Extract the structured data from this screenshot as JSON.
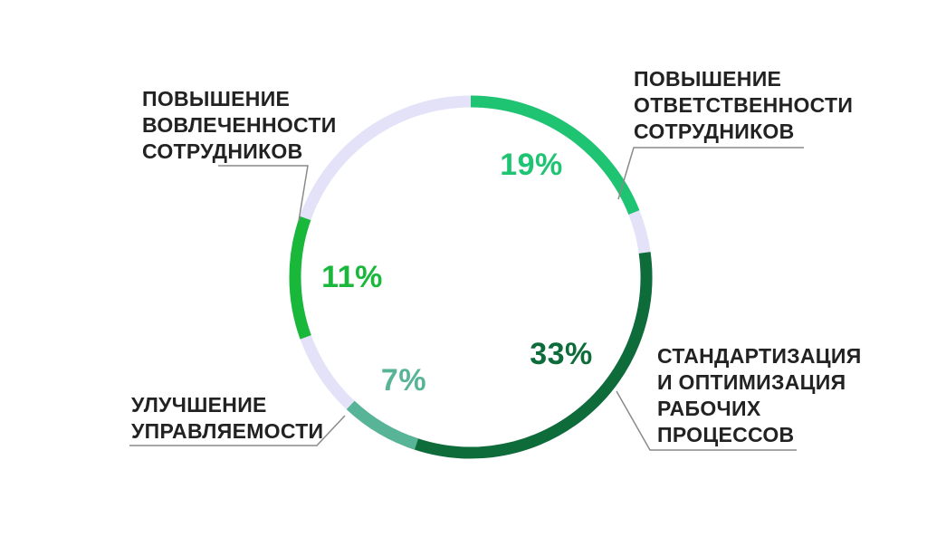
{
  "chart_data": {
    "type": "donut",
    "title": "",
    "track_color": "#e4e2f8",
    "segments": [
      {
        "label_lines": [
          "ПОВЫШЕНИЕ",
          "ОТВЕТСТВЕННОСТИ",
          "СОТРУДНИКОВ"
        ],
        "value": 19,
        "value_label": "19%",
        "color": "#1ec472"
      },
      {
        "label_lines": [
          "СТАНДАРТИЗАЦИЯ",
          "И ОПТИМИЗАЦИЯ",
          "РАБОЧИХ",
          "ПРОЦЕССОВ"
        ],
        "value": 33,
        "value_label": "33%",
        "color": "#0e6b3a"
      },
      {
        "label_lines": [
          "УЛУЧШЕНИЕ",
          "УПРАВЛЯЕМОСТИ"
        ],
        "value": 7,
        "value_label": "7%",
        "color": "#58b496"
      },
      {
        "label_lines": [
          "ПОВЫШЕНИЕ",
          "ВОВЛЕЧЕННОСТИ",
          "СОТРУДНИКОВ"
        ],
        "value": 11,
        "value_label": "11%",
        "color": "#19b83a"
      }
    ]
  }
}
